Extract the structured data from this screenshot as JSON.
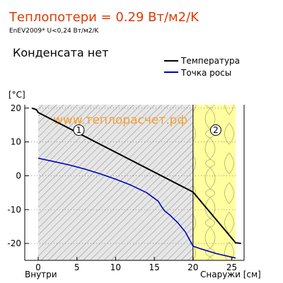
{
  "header": {
    "title": "Теплопотери = 0.29 Вт/м2/K",
    "subtitle": "EnEV2009* U<0,24 Вт/м2/K",
    "condensate": "Конденсата нет"
  },
  "watermark": "www.теплорасчет.рф",
  "colors": {
    "title": "#e03a00",
    "temperature": "#000000",
    "dew_point": "#0000c0",
    "watermark": "#f5a033",
    "insulation_fill": "#ffffa0"
  },
  "chart_data": {
    "type": "line",
    "ylabel": "[°C]",
    "x_left_label": "Внутри",
    "x_right_label": "Снаружи [см]",
    "xlim": [
      0,
      25.5
    ],
    "x_outer_limits": [
      -0.8,
      26.2
    ],
    "ylim": [
      -25,
      21
    ],
    "x_ticks": [
      0,
      5,
      10,
      15,
      20,
      25
    ],
    "y_ticks": [
      20,
      10,
      0,
      -10,
      -20
    ],
    "legend": {
      "position": "top-right",
      "entries": [
        "Температура",
        "Точка росы"
      ]
    },
    "layers": [
      {
        "label": "1",
        "from": 0,
        "to": 20,
        "pattern": "hatch"
      },
      {
        "label": "2",
        "from": 20,
        "to": 25.5,
        "pattern": "insulation"
      }
    ],
    "series": [
      {
        "name": "Температура",
        "points": [
          [
            -0.8,
            20.0
          ],
          [
            -0.2,
            19.5
          ],
          [
            0,
            18.7
          ],
          [
            20,
            -4.8
          ],
          [
            25.5,
            -19.8
          ],
          [
            26.2,
            -20.0
          ]
        ]
      },
      {
        "name": "Точка росы",
        "points": [
          [
            0,
            5.2
          ],
          [
            2,
            4.2
          ],
          [
            4,
            3.2
          ],
          [
            6,
            2.0
          ],
          [
            8,
            0.6
          ],
          [
            10,
            -1.0
          ],
          [
            12,
            -2.8
          ],
          [
            14,
            -5.0
          ],
          [
            15.5,
            -7.5
          ],
          [
            15.9,
            -9.0
          ],
          [
            16.3,
            -10.3
          ],
          [
            17,
            -11.6
          ],
          [
            18,
            -13.8
          ],
          [
            19,
            -16.6
          ],
          [
            20,
            -20.8
          ],
          [
            21,
            -21.6
          ],
          [
            23,
            -23.0
          ],
          [
            25.5,
            -24.3
          ]
        ]
      }
    ]
  }
}
